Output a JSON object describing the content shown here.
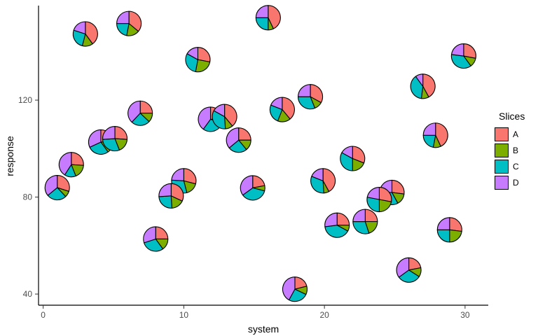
{
  "axes": {
    "x": {
      "label": "system",
      "ticks": [
        0,
        10,
        20,
        30
      ]
    },
    "y": {
      "label": "response",
      "ticks": [
        40,
        80,
        120
      ]
    }
  },
  "legend": {
    "title": "Slices",
    "items": [
      {
        "label": "A",
        "color": "#F8766D"
      },
      {
        "label": "B",
        "color": "#7CAE00"
      },
      {
        "label": "C",
        "color": "#00BFC4"
      },
      {
        "label": "D",
        "color": "#C77CFF"
      }
    ]
  },
  "chart_data": {
    "type": "scatter-pie",
    "xlabel": "system",
    "ylabel": "response",
    "xlim": [
      -0.33,
      31.65
    ],
    "ylim": [
      35.4,
      159.0
    ],
    "x_ticks": [
      0,
      10,
      20,
      30
    ],
    "y_ticks": [
      40,
      80,
      120
    ],
    "grid": false,
    "legend_position": "right",
    "slice_order": [
      "A",
      "B",
      "C",
      "D"
    ],
    "slice_colors": {
      "A": "#F8766D",
      "B": "#7CAE00",
      "C": "#00BFC4",
      "D": "#C77CFF"
    },
    "pie_radius_px": 17.5,
    "points": [
      {
        "x": 3.0,
        "y": 147.3,
        "slices": {
          "A": 0.4,
          "B": 0.14,
          "C": 0.26,
          "D": 0.2
        }
      },
      {
        "x": 6.1,
        "y": 151.6,
        "slices": {
          "A": 0.36,
          "B": 0.17,
          "C": 0.22,
          "D": 0.25
        }
      },
      {
        "x": 6.9,
        "y": 114.6,
        "slices": {
          "A": 0.25,
          "B": 0.12,
          "C": 0.25,
          "D": 0.38
        }
      },
      {
        "x": 4.1,
        "y": 102.7,
        "slices": {
          "A": 0.25,
          "B": 0.15,
          "C": 0.28,
          "D": 0.32
        }
      },
      {
        "x": 5.1,
        "y": 104.1,
        "slices": {
          "A": 0.26,
          "B": 0.18,
          "C": 0.3,
          "D": 0.26
        }
      },
      {
        "x": 2.0,
        "y": 93.4,
        "slices": {
          "A": 0.26,
          "B": 0.18,
          "C": 0.15,
          "D": 0.41
        }
      },
      {
        "x": 1.0,
        "y": 83.9,
        "slices": {
          "A": 0.3,
          "B": 0.08,
          "C": 0.26,
          "D": 0.36
        }
      },
      {
        "x": 11.0,
        "y": 136.7,
        "slices": {
          "A": 0.28,
          "B": 0.25,
          "C": 0.3,
          "D": 0.17
        }
      },
      {
        "x": 11.9,
        "y": 112.1,
        "slices": {
          "A": 0.25,
          "B": 0.05,
          "C": 0.3,
          "D": 0.4
        }
      },
      {
        "x": 12.9,
        "y": 113.2,
        "slices": {
          "A": 0.39,
          "B": 0.1,
          "C": 0.34,
          "D": 0.17
        }
      },
      {
        "x": 13.9,
        "y": 103.5,
        "slices": {
          "A": 0.25,
          "B": 0.14,
          "C": 0.25,
          "D": 0.36
        }
      },
      {
        "x": 16.0,
        "y": 154.0,
        "slices": {
          "A": 0.43,
          "B": 0.07,
          "C": 0.25,
          "D": 0.25
        }
      },
      {
        "x": 17.0,
        "y": 116.1,
        "slices": {
          "A": 0.39,
          "B": 0.17,
          "C": 0.25,
          "D": 0.19
        }
      },
      {
        "x": 19.0,
        "y": 121.4,
        "slices": {
          "A": 0.33,
          "B": 0.11,
          "C": 0.31,
          "D": 0.25
        }
      },
      {
        "x": 29.9,
        "y": 138.2,
        "slices": {
          "A": 0.28,
          "B": 0.12,
          "C": 0.37,
          "D": 0.23
        }
      },
      {
        "x": 27.0,
        "y": 125.7,
        "slices": {
          "A": 0.42,
          "B": 0.1,
          "C": 0.38,
          "D": 0.1
        }
      },
      {
        "x": 27.9,
        "y": 105.5,
        "slices": {
          "A": 0.43,
          "B": 0.1,
          "C": 0.22,
          "D": 0.25
        }
      },
      {
        "x": 14.9,
        "y": 83.8,
        "slices": {
          "A": 0.22,
          "B": 0.07,
          "C": 0.36,
          "D": 0.35
        }
      },
      {
        "x": 10.0,
        "y": 86.7,
        "slices": {
          "A": 0.29,
          "B": 0.17,
          "C": 0.3,
          "D": 0.24
        }
      },
      {
        "x": 9.1,
        "y": 80.5,
        "slices": {
          "A": 0.32,
          "B": 0.17,
          "C": 0.25,
          "D": 0.26
        }
      },
      {
        "x": 8.0,
        "y": 62.7,
        "slices": {
          "A": 0.25,
          "B": 0.15,
          "C": 0.3,
          "D": 0.3
        }
      },
      {
        "x": 19.9,
        "y": 86.7,
        "slices": {
          "A": 0.42,
          "B": 0.07,
          "C": 0.32,
          "D": 0.19
        }
      },
      {
        "x": 22.0,
        "y": 95.9,
        "slices": {
          "A": 0.31,
          "B": 0.19,
          "C": 0.33,
          "D": 0.17
        }
      },
      {
        "x": 24.8,
        "y": 81.9,
        "slices": {
          "A": 0.27,
          "B": 0.15,
          "C": 0.33,
          "D": 0.25
        }
      },
      {
        "x": 23.9,
        "y": 79.0,
        "slices": {
          "A": 0.28,
          "B": 0.22,
          "C": 0.28,
          "D": 0.22
        }
      },
      {
        "x": 20.9,
        "y": 68.4,
        "slices": {
          "A": 0.25,
          "B": 0.08,
          "C": 0.4,
          "D": 0.27
        }
      },
      {
        "x": 22.9,
        "y": 69.9,
        "slices": {
          "A": 0.25,
          "B": 0.2,
          "C": 0.3,
          "D": 0.25
        }
      },
      {
        "x": 28.9,
        "y": 66.5,
        "slices": {
          "A": 0.27,
          "B": 0.23,
          "C": 0.25,
          "D": 0.25
        }
      },
      {
        "x": 26.0,
        "y": 49.9,
        "slices": {
          "A": 0.22,
          "B": 0.12,
          "C": 0.31,
          "D": 0.35
        }
      },
      {
        "x": 17.9,
        "y": 42.0,
        "slices": {
          "A": 0.21,
          "B": 0.11,
          "C": 0.26,
          "D": 0.42
        }
      }
    ]
  }
}
